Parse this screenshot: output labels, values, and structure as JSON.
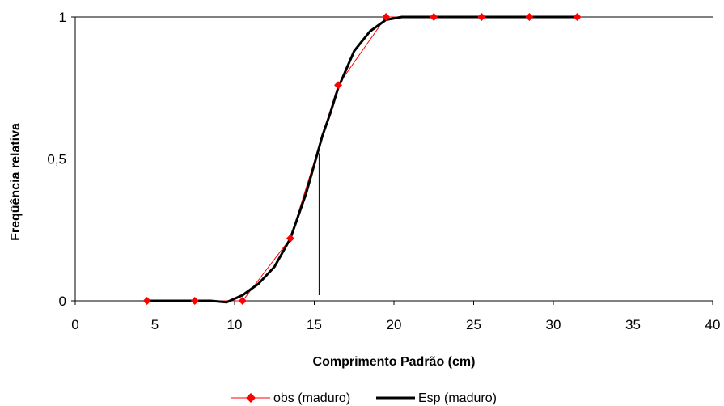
{
  "chart_data": {
    "type": "line",
    "title": "",
    "xlabel": "Comprimento Padrão (cm)",
    "ylabel": "Freqüência relativa",
    "xlim": [
      0,
      40
    ],
    "ylim": [
      0,
      1
    ],
    "x_ticks": [
      "0",
      "5",
      "10",
      "15",
      "20",
      "25",
      "30",
      "35",
      "40"
    ],
    "y_ticks": [
      "0",
      "0,5",
      "1"
    ],
    "grid": "horizontal at y ticks",
    "legend_position": "bottom",
    "series": [
      {
        "name": "obs (maduro)",
        "color": "#ff0000",
        "marker": "diamond",
        "x": [
          4.5,
          7.5,
          10.5,
          13.5,
          16.5,
          19.5,
          22.5,
          25.5,
          28.5,
          31.5
        ],
        "y": [
          0,
          0,
          0,
          0.22,
          0.76,
          1,
          1,
          1,
          1,
          1
        ]
      },
      {
        "name": "Esp (maduro)",
        "color": "#000000",
        "marker": "none",
        "x": [
          4.5,
          7.5,
          8.5,
          9.5,
          10.5,
          11.5,
          12.5,
          13.5,
          14.5,
          15.0,
          15.5,
          16.0,
          16.5,
          17.5,
          18.5,
          19.5,
          20.5,
          22.5,
          25.5,
          28.5,
          31.5
        ],
        "y": [
          0,
          0,
          0,
          -0.005,
          0.02,
          0.06,
          0.12,
          0.22,
          0.38,
          0.48,
          0.58,
          0.66,
          0.75,
          0.88,
          0.95,
          0.99,
          1,
          1,
          1,
          1,
          1
        ]
      }
    ],
    "reference_line": {
      "x": 15.3,
      "y_from": 0.02,
      "y_to": 0.52,
      "color": "#000000"
    }
  }
}
